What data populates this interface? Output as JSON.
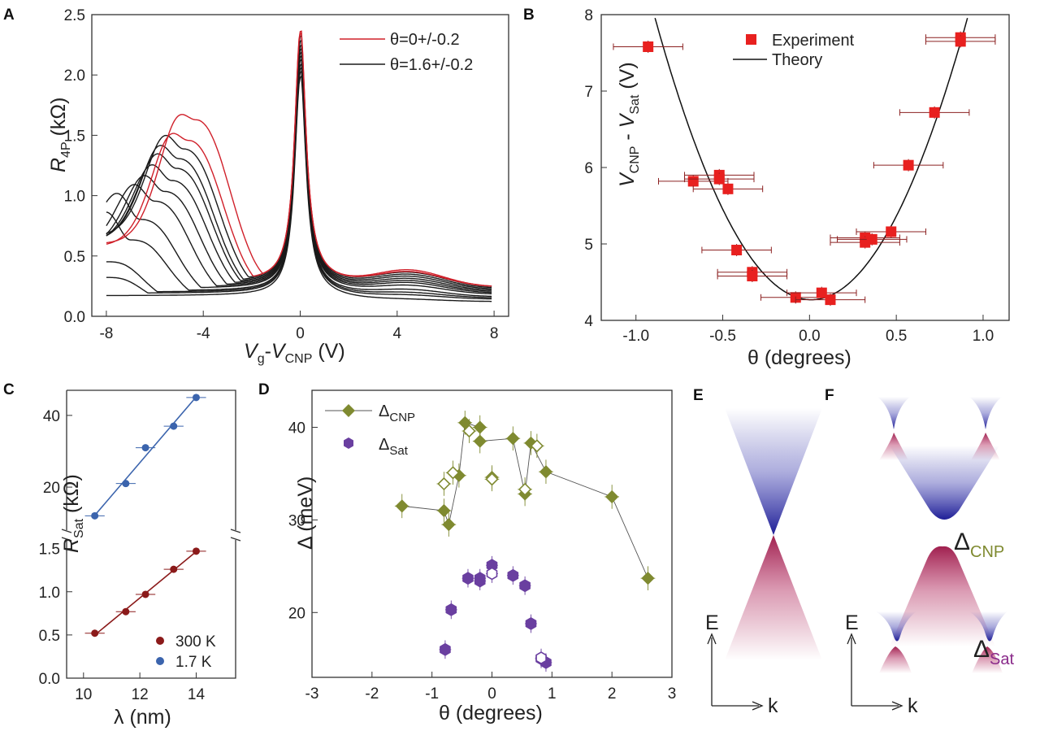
{
  "panels": {
    "A": {
      "label": "A"
    },
    "B": {
      "label": "B"
    },
    "C": {
      "label": "C"
    },
    "D": {
      "label": "D"
    },
    "E": {
      "label": "E"
    },
    "F": {
      "label": "F"
    }
  },
  "chart_data": [
    {
      "panel": "A",
      "type": "line",
      "xlabel": "V_g-V_CNP (V)",
      "ylabel": "R_4P (kΩ)",
      "xlim": [
        -8.6,
        8.6
      ],
      "ylim": [
        0,
        2.5
      ],
      "xticks": [
        -8,
        -4,
        0,
        4,
        8
      ],
      "yticks": [
        0.0,
        0.5,
        1.0,
        1.5,
        2.0,
        2.5
      ],
      "series": [
        {
          "name": "θ=0+/-0.2",
          "color": "#d0202a",
          "curves": [
            {
              "peak": 2.22,
              "hump_v": -4.3,
              "hump_r": 1.62,
              "left_r": 0.6,
              "right_r": 0.24
            },
            {
              "peak": 2.2,
              "hump_v": -4.6,
              "hump_r": 1.45,
              "left_r": 0.58,
              "right_r": 0.24
            }
          ]
        },
        {
          "name": "θ=1.6+/-0.2",
          "color": "#1a1a1a",
          "curves": [
            {
              "peak": 2.18,
              "hump_v": -4.8,
              "hump_r": 1.38,
              "left_r": 0.66,
              "right_r": 0.24
            },
            {
              "peak": 2.15,
              "hump_v": -5.0,
              "hump_r": 1.3,
              "left_r": 0.63,
              "right_r": 0.23
            },
            {
              "peak": 2.12,
              "hump_v": -5.1,
              "hump_r": 1.22,
              "left_r": 0.62,
              "right_r": 0.22
            },
            {
              "peak": 2.1,
              "hump_v": -5.3,
              "hump_r": 1.12,
              "left_r": 0.6,
              "right_r": 0.21
            },
            {
              "peak": 2.08,
              "hump_v": -5.6,
              "hump_r": 1.03,
              "left_r": 0.57,
              "right_r": 0.2
            },
            {
              "peak": 2.06,
              "hump_v": -6.0,
              "hump_r": 0.95,
              "left_r": 0.55,
              "right_r": 0.19
            },
            {
              "peak": 2.04,
              "hump_v": -6.6,
              "hump_r": 0.8,
              "left_r": 0.6,
              "right_r": 0.18
            },
            {
              "peak": 2.02,
              "hump_v": -7.0,
              "hump_r": 0.63,
              "left_r": 0.55,
              "right_r": 0.16
            },
            {
              "peak": 2.0,
              "hump_v": -8.0,
              "hump_r": 0.45,
              "left_r": 0.45,
              "right_r": 0.15
            },
            {
              "peak": 1.98,
              "hump_v": -8.0,
              "hump_r": 0.32,
              "left_r": 0.32,
              "right_r": 0.14
            },
            {
              "peak": 1.96,
              "hump_v": -8.0,
              "hump_r": 0.14,
              "left_r": 0.14,
              "right_r": 0.12
            }
          ]
        }
      ],
      "legend": "top-right"
    },
    {
      "panel": "B",
      "type": "scatter",
      "xlabel": "θ (degrees)",
      "ylabel": "V_CNP - V_Sat (V)",
      "xlim": [
        -1.2,
        1.15
      ],
      "ylim": [
        4.0,
        8.0
      ],
      "xticks": [
        -1.0,
        -0.5,
        0.0,
        0.5,
        1.0
      ],
      "yticks": [
        4,
        5,
        6,
        7,
        8
      ],
      "series": [
        {
          "name": "Experiment",
          "color": "#e8201f",
          "points": [
            [
              -0.93,
              7.58,
              0.2
            ],
            [
              -0.67,
              5.82,
              0.2
            ],
            [
              -0.52,
              5.9,
              0.2
            ],
            [
              -0.52,
              5.85,
              0.2
            ],
            [
              -0.47,
              5.72,
              0.2
            ],
            [
              -0.42,
              4.92,
              0.2
            ],
            [
              -0.33,
              4.63,
              0.2
            ],
            [
              -0.33,
              4.58,
              0.2
            ],
            [
              -0.08,
              4.3,
              0.2
            ],
            [
              0.07,
              4.36,
              0.2
            ],
            [
              0.12,
              4.27,
              0.2
            ],
            [
              0.32,
              5.08,
              0.2
            ],
            [
              0.32,
              5.02,
              0.2
            ],
            [
              0.36,
              5.06,
              0.2
            ],
            [
              0.47,
              5.16,
              0.2
            ],
            [
              0.57,
              6.03,
              0.2
            ],
            [
              0.72,
              6.72,
              0.2
            ],
            [
              0.87,
              7.7,
              0.2
            ],
            [
              0.87,
              7.65,
              0.2
            ]
          ]
        },
        {
          "name": "Theory",
          "color": "#111111",
          "model": "4.27 + 4.55*(θ-0.01)^2"
        }
      ],
      "legend": "top-center"
    },
    {
      "panel": "C",
      "type": "scatter",
      "xlabel": "λ (nm)",
      "ylabel": "R_Sat (kΩ)",
      "xlim": [
        9.4,
        15.4
      ],
      "xticks": [
        10,
        12,
        14
      ],
      "yticks_lower": [
        0.0,
        0.5,
        1.0,
        1.5
      ],
      "yticks_upper": [
        20,
        40
      ],
      "series": [
        {
          "name": "300 K",
          "color": "#8b1a1a",
          "axis": "lower",
          "x": [
            10.4,
            11.5,
            12.2,
            13.2,
            14.0
          ],
          "y": [
            0.52,
            0.77,
            0.97,
            1.26,
            1.47
          ]
        },
        {
          "name": "1.7 K",
          "color": "#3b64ad",
          "axis": "upper",
          "x": [
            10.4,
            11.5,
            12.2,
            13.2,
            14.0
          ],
          "y": [
            12.0,
            21.0,
            31.0,
            37.0,
            45.0
          ]
        }
      ],
      "legend": "bottom-right"
    },
    {
      "panel": "D",
      "type": "scatter",
      "xlabel": "θ (degrees)",
      "ylabel": "Δ (meV)",
      "xlim": [
        -3,
        3
      ],
      "ylim": [
        13,
        44
      ],
      "xticks": [
        -3,
        -2,
        -1,
        0,
        1,
        2,
        3
      ],
      "yticks": [
        20,
        30,
        40
      ],
      "series": [
        {
          "name": "Δ_CNP",
          "color": "#7f8a30",
          "filled": [
            [
              -1.5,
              31.5
            ],
            [
              -0.8,
              31.0
            ],
            [
              -0.72,
              29.5
            ],
            [
              -0.55,
              34.8
            ],
            [
              -0.45,
              40.5
            ],
            [
              -0.2,
              40.0
            ],
            [
              -0.2,
              38.5
            ],
            [
              0.35,
              38.8
            ],
            [
              0.55,
              32.8
            ],
            [
              0.65,
              38.3
            ],
            [
              0.9,
              35.2
            ],
            [
              2.0,
              32.5
            ],
            [
              2.6,
              23.7
            ]
          ],
          "open": [
            [
              -0.8,
              33.9
            ],
            [
              -0.65,
              35.1
            ],
            [
              -0.38,
              39.6
            ],
            [
              0.0,
              34.6
            ],
            [
              0.0,
              34.4
            ],
            [
              0.55,
              33.3
            ],
            [
              0.75,
              38.0
            ]
          ]
        },
        {
          "name": "Δ_Sat",
          "color": "#6a3fa0",
          "filled": [
            [
              -0.78,
              16.0
            ],
            [
              -0.68,
              20.3
            ],
            [
              -0.4,
              23.7
            ],
            [
              -0.2,
              23.4
            ],
            [
              -0.2,
              23.7
            ],
            [
              0.0,
              25.1
            ],
            [
              0.35,
              24.0
            ],
            [
              0.55,
              22.9
            ],
            [
              0.65,
              18.8
            ],
            [
              0.82,
              15.0
            ],
            [
              0.9,
              14.6
            ]
          ],
          "open": [
            [
              0.0,
              24.2
            ],
            [
              0.82,
              15.1
            ]
          ]
        }
      ],
      "legend": "top-left"
    }
  ],
  "E": {
    "axis_e": "E",
    "axis_k": "k"
  },
  "F": {
    "axis_e": "E",
    "axis_k": "k"
  }
}
